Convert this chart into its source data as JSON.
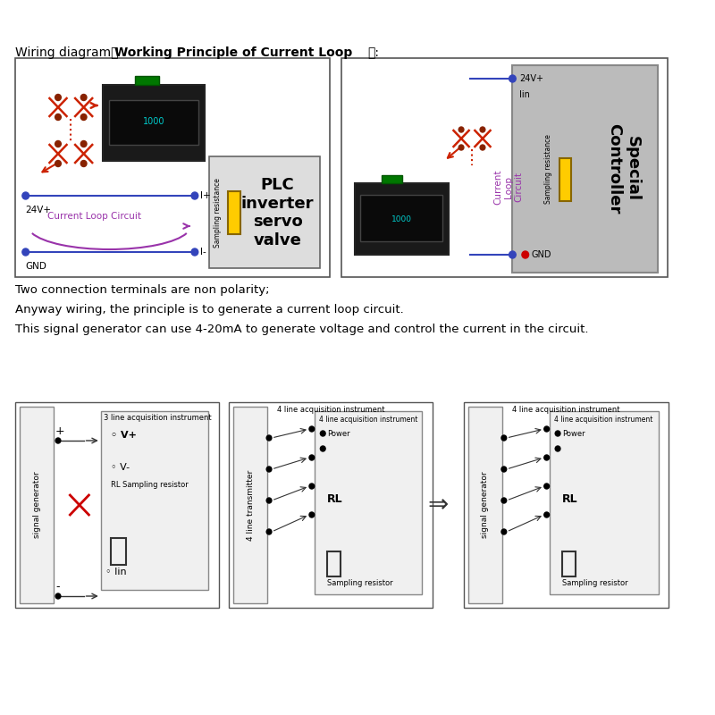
{
  "bg_color": "#ffffff",
  "title_normal": "Wiring diagram（",
  "title_bold": "Working Principle of Current Loop",
  "title_end": "）:",
  "line1": "Two connection terminals are non polarity;",
  "line2": "Anyway wiring, the principle is to generate a current loop circuit.",
  "line3": "This signal generator can use 4-20mA to generate voltage and control the current in the circuit.",
  "d1_24v": "24V+",
  "d1_gnd": "GND",
  "d1_ip": "I+",
  "d1_im": "I-",
  "d1_loop": "Current Loop Circuit",
  "d1_sampling": "Sampling resistance",
  "d1_plc": "PLC\ninverter\nservo\nvalve",
  "d2_24v": "24V+",
  "d2_lin": "Iin",
  "d2_gnd": "GND",
  "d2_sampling": "Sampling resistance",
  "d2_special": "Special\nController",
  "d2_loop": "Current\nLoop\nCircuit",
  "b1_inst": "3 line acquisition instrument",
  "b1_vp": "V+",
  "b1_vm": "V-",
  "b1_rl": "RL",
  "b1_sampling": "Sampling resistor",
  "b1_lin": "Iin",
  "b1_sg": "signal generator",
  "b2_inst": "4 line acquisition instrument",
  "b2_power": "Power",
  "b2_rl": "RL",
  "b2_sampling": "Sampling resistor",
  "b2_transmitter": "4 line transmitter",
  "b3_inst": "4 line acquisition instrument",
  "b3_power": "Power",
  "b3_rl": "RL",
  "b3_sampling": "Sampling resistor",
  "b3_sg": "signal generator"
}
